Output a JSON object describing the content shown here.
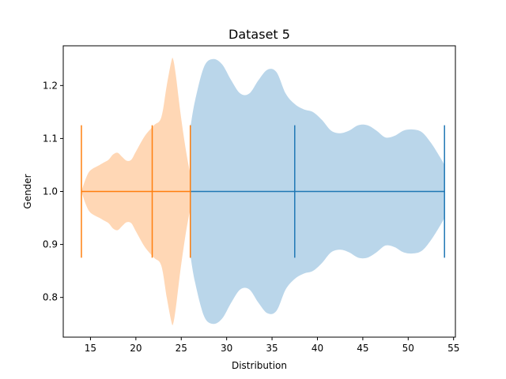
{
  "chart_data": {
    "type": "violin",
    "orientation": "horizontal",
    "title": "Dataset 5",
    "xlabel": "Distribution",
    "ylabel": "Gender",
    "xlim": [
      12.0,
      55.2
    ],
    "ylim": [
      0.725,
      1.275
    ],
    "xticks": [
      15,
      20,
      25,
      30,
      35,
      40,
      45,
      50,
      55
    ],
    "yticks": [
      0.8,
      0.9,
      1.0,
      1.1,
      1.2
    ],
    "ytick_labels": [
      "0.8",
      "0.9",
      "1.0",
      "1.1",
      "1.2"
    ],
    "position": 1.0,
    "series": [
      {
        "color": "#1f77b4",
        "fill_color": "#bad6ea",
        "min": 26.0,
        "median": 37.5,
        "max": 54.0,
        "density": [
          [
            26.0,
            0.12
          ],
          [
            26.5,
            0.17
          ],
          [
            27.5,
            0.235
          ],
          [
            28.5,
            0.25
          ],
          [
            29.5,
            0.24
          ],
          [
            30.5,
            0.21
          ],
          [
            31.5,
            0.185
          ],
          [
            32.5,
            0.185
          ],
          [
            33.5,
            0.21
          ],
          [
            34.5,
            0.23
          ],
          [
            35.5,
            0.225
          ],
          [
            36.5,
            0.185
          ],
          [
            37.5,
            0.165
          ],
          [
            38.5,
            0.155
          ],
          [
            39.5,
            0.15
          ],
          [
            40.5,
            0.135
          ],
          [
            41.5,
            0.115
          ],
          [
            42.5,
            0.11
          ],
          [
            43.5,
            0.115
          ],
          [
            44.5,
            0.125
          ],
          [
            45.5,
            0.125
          ],
          [
            46.5,
            0.115
          ],
          [
            47.5,
            0.102
          ],
          [
            48.5,
            0.105
          ],
          [
            49.5,
            0.115
          ],
          [
            50.5,
            0.117
          ],
          [
            51.5,
            0.112
          ],
          [
            52.5,
            0.092
          ],
          [
            53.5,
            0.065
          ],
          [
            54.0,
            0.05
          ]
        ]
      },
      {
        "color": "#ff7f0e",
        "fill_color": "#ffd7b5",
        "min": 14.0,
        "median": 21.8,
        "max": 26.0,
        "density": [
          [
            14.0,
            0.0
          ],
          [
            14.5,
            0.025
          ],
          [
            15.0,
            0.04
          ],
          [
            16.0,
            0.05
          ],
          [
            16.5,
            0.055
          ],
          [
            17.0,
            0.06
          ],
          [
            17.5,
            0.07
          ],
          [
            18.0,
            0.073
          ],
          [
            18.5,
            0.065
          ],
          [
            19.0,
            0.058
          ],
          [
            19.5,
            0.06
          ],
          [
            20.0,
            0.075
          ],
          [
            21.0,
            0.105
          ],
          [
            22.0,
            0.125
          ],
          [
            22.8,
            0.14
          ],
          [
            23.4,
            0.2
          ],
          [
            23.9,
            0.245
          ],
          [
            24.1,
            0.25
          ],
          [
            24.4,
            0.22
          ],
          [
            24.9,
            0.15
          ],
          [
            25.4,
            0.09
          ],
          [
            25.8,
            0.05
          ],
          [
            26.0,
            0.035
          ]
        ]
      }
    ]
  }
}
